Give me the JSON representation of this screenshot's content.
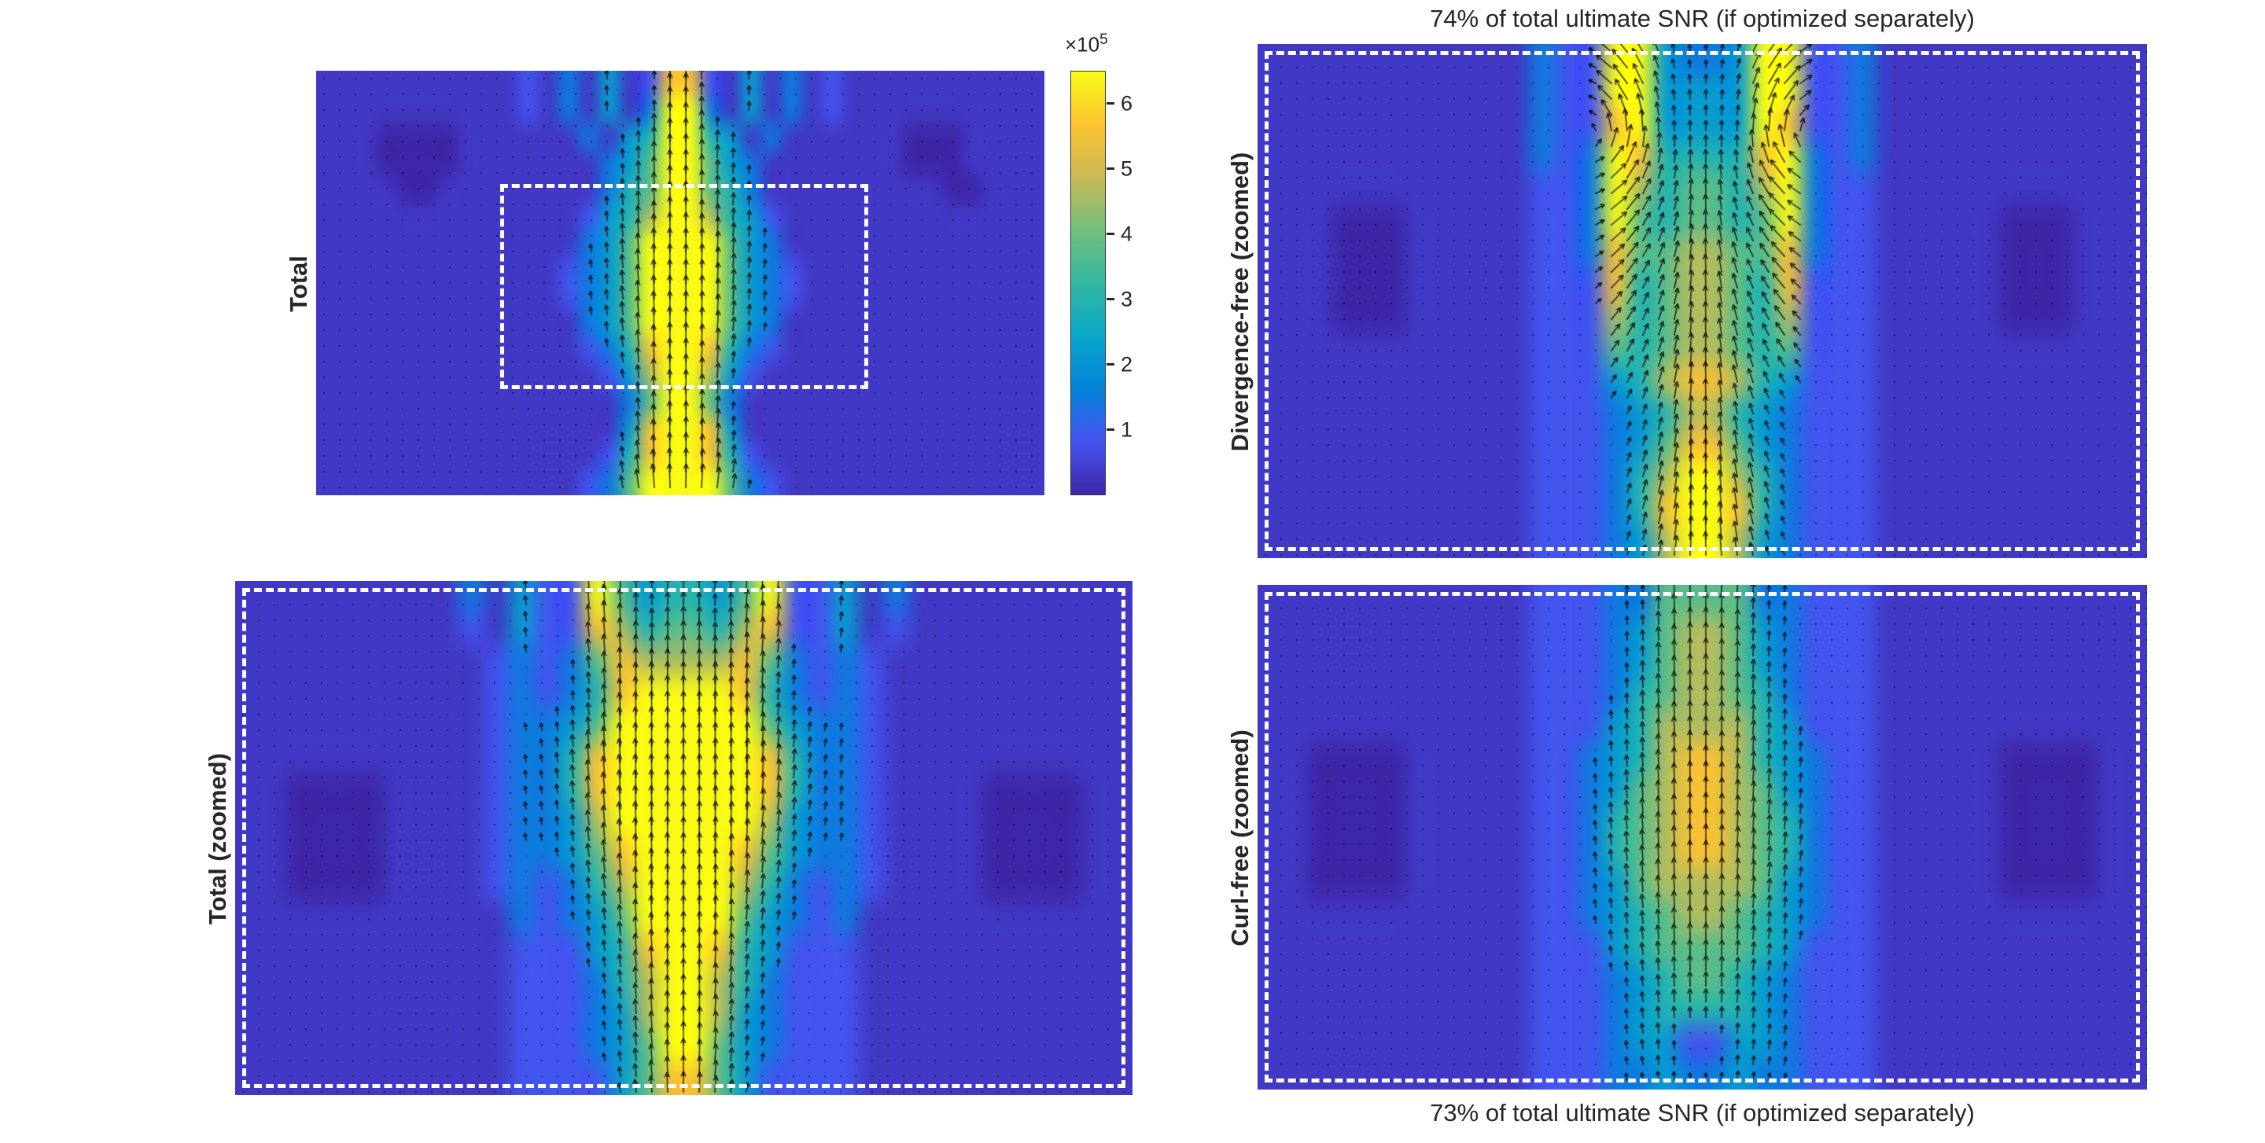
{
  "figure": {
    "background": "#ffffff",
    "quiver_color": "#000000",
    "dash_color": "#ffffff",
    "colormap": [
      "#3e26a8",
      "#4553ef",
      "#0383da",
      "#0ba7ca",
      "#33b8a1",
      "#71bf7b",
      "#c9ba56",
      "#fdc330",
      "#f9fb14"
    ]
  },
  "colorbar": {
    "exponent_base": "×10",
    "exponent_power": "5",
    "ticks": [
      1,
      2,
      3,
      4,
      5,
      6
    ],
    "axis_max": 6.5,
    "clim": [
      0,
      650000
    ]
  },
  "chart_data": [
    {
      "id": "total",
      "type": "heatmap",
      "ylabel": "Total",
      "overlay": "quiver (black arrows and dots)",
      "grid_encoding": "rows of digits 0-9 = normalized field intensity, 9 ~ 6.5e5",
      "clim": [
        0,
        650000
      ],
      "quiver": {
        "style": "fan"
      },
      "zoom_region": {
        "left_frac": 0.253,
        "top_frac": 0.266,
        "width_frac": 0.505,
        "height_frac": 0.484
      },
      "rows": [
        "111111111121314128821413121111111111",
        "111111111121314139931413121111111111",
        "111000011111131459954131111110001111",
        "111000011111113469964311111110001111",
        "111100111111113569965311111111100111",
        "111111111111124579975421111111111111",
        "111111111111134699996431111111111111",
        "111111111111234699996432111111111111",
        "111111111111234699996432111111111111",
        "111111111111134699996431111111111111",
        "111111111111123589985321111111111111",
        "111111111111112479974211111111111111",
        "111111111111111369963111111111111111",
        "111111111111111489984111111111111111",
        "111111111111112589985211111111111111",
        "111111111111123699996321111111111111"
      ]
    },
    {
      "id": "divfree",
      "type": "heatmap",
      "title": "74% of total ultimate SNR (if optimized separately)",
      "ylabel": "Divergence-free (zoomed)",
      "overlay": "quiver (black arrows and dots)",
      "dashed_outline": true,
      "clim": [
        0,
        650000
      ],
      "quiver": {
        "style": "vortex-pair"
      },
      "rows": [
        "111111111113229943349922311111111111",
        "111111111113229944449922311111111111",
        "111111111113228944449822311111111111",
        "111111111113239855558932311111111111",
        "111111111112239756657932211111111111",
        "111000111112239656656932211111000111",
        "111000111112238667766832211111000111",
        "111000111112228567765822211111000111",
        "111000111112227567765722211111000111",
        "111111111112226567765622211111111111",
        "111111111112224578875422211111111111",
        "111111111112223457754322211111111111",
        "111111111112223468864322211111111111",
        "111111111112223579975322211111111111",
        "111111111112223589985322211111111111",
        "111111111112223479974322211111111111"
      ]
    },
    {
      "id": "totalzoom",
      "type": "heatmap",
      "ylabel": "Total (zoomed)",
      "overlay": "quiver (black arrows and dots)",
      "dashed_outline": true,
      "clim": [
        0,
        650000
      ],
      "quiver": {
        "style": "fan"
      },
      "rows": [
        "111111111314229645546922413111111111",
        "111111111214228756657822412111111111",
        "111111111123236877778632321111111111",
        "111111111123235899998532321111111111",
        "111111111123346999999643321111111111",
        "111111111123358999999853321111111111",
        "110000111123358999999853321111000011",
        "110000111123347999999743321111000011",
        "110000111123346899998643321111000011",
        "110000111123235799997532321111000011",
        "111111111113234699996432311111111111",
        "111111111112224589985422211111111111",
        "111111111112223579975322211111111111",
        "111111111112223479974322211111111111",
        "111111111112223469964322211111111111",
        "111111111112222468864222211111111111"
      ]
    },
    {
      "id": "curlfree",
      "type": "heatmap",
      "ylabel": "Curl-free (zoomed)",
      "caption": "73% of total ultimate SNR (if optimized separately)",
      "overlay": "quiver (black arrows and dots)",
      "dashed_outline": true,
      "clim": [
        0,
        650000
      ],
      "quiver": {
        "style": "fan"
      },
      "rows": [
        "111111111112223366663322211111111111",
        "111111111112223467764322211111111111",
        "111111111112223467764322211111111111",
        "111111111112223567765322211111111111",
        "111111111112224577775422211111111111",
        "110000111112234578875432211111000011",
        "110000111112234678876432211111000011",
        "110000111112235678876532211111000011",
        "110000111112235678876532211111000011",
        "110000111112234677776432211111000011",
        "111111111112234567765432211111111111",
        "111111111112224566665422211111111111",
        "111111111112223456654322211111111111",
        "111111111112223455554322211111111111",
        "111111111112223442244322211111111111",
        "111111111112223343343322211111111111"
      ]
    }
  ]
}
